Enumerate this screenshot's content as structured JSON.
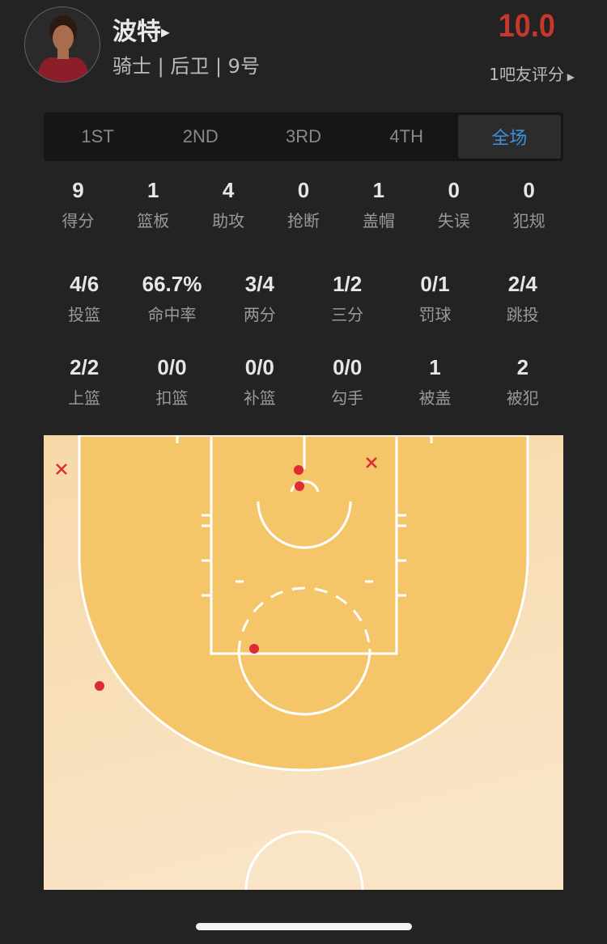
{
  "player": {
    "name": "波特",
    "team_info": "骑士 | 后卫 | 9号",
    "rating": "10.0",
    "rating_label": "1吧友评分"
  },
  "tabs": [
    {
      "label": "1ST"
    },
    {
      "label": "2ND"
    },
    {
      "label": "3RD"
    },
    {
      "label": "4TH"
    },
    {
      "label": "全场",
      "active": true
    }
  ],
  "basic_stats": [
    {
      "value": "9",
      "label": "得分"
    },
    {
      "value": "1",
      "label": "篮板"
    },
    {
      "value": "4",
      "label": "助攻"
    },
    {
      "value": "0",
      "label": "抢断"
    },
    {
      "value": "1",
      "label": "盖帽"
    },
    {
      "value": "0",
      "label": "失误"
    },
    {
      "value": "0",
      "label": "犯规"
    }
  ],
  "shooting_stats": [
    {
      "value": "4/6",
      "label": "投篮"
    },
    {
      "value": "66.7%",
      "label": "命中率"
    },
    {
      "value": "3/4",
      "label": "两分"
    },
    {
      "value": "1/2",
      "label": "三分"
    },
    {
      "value": "0/1",
      "label": "罚球"
    },
    {
      "value": "2/4",
      "label": "跳投"
    }
  ],
  "shot_types": [
    {
      "value": "2/2",
      "label": "上篮"
    },
    {
      "value": "0/0",
      "label": "扣篮"
    },
    {
      "value": "0/0",
      "label": "补篮"
    },
    {
      "value": "0/0",
      "label": "勾手"
    },
    {
      "value": "1",
      "label": "被盖"
    },
    {
      "value": "2",
      "label": "被犯"
    }
  ],
  "shot_chart": {
    "made_count": 4,
    "missed_count": 2,
    "colors": {
      "made": "#e02a35",
      "missed": "#e02a35",
      "paint": "#f5c56a",
      "outside": "#f8e0bb"
    }
  },
  "colors": {
    "rating": "#c8372c",
    "active_tab": "#3d8fe0"
  }
}
